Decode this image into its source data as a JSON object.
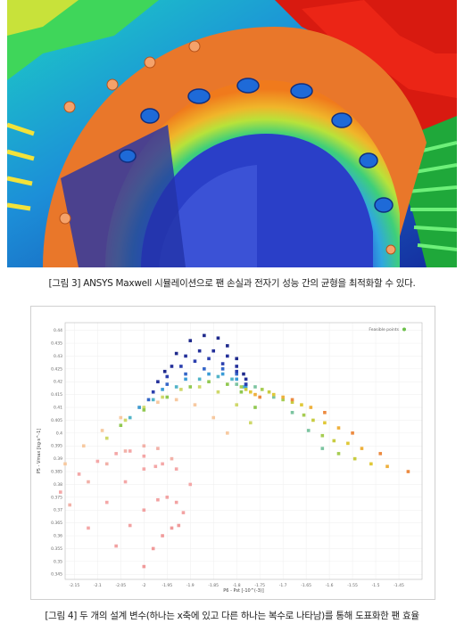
{
  "figure3": {
    "caption": "[그림 3] ANSYS Maxwell 시뮬레이션으로 팬 손실과 전자기 성능 간의 균형을 최적화할 수 있다."
  },
  "figure4": {
    "caption": "[그림 4] 두 개의 설계 변수(하나는 x축에 있고 다른 하나는 복수로 나타남)를 통해 도표화한 팬 효율",
    "chart_data": {
      "type": "scatter",
      "xlabel": "P6 - Pst [-10^(-3)]",
      "ylabel": "P5 - Vmax [kg·s^-1]",
      "legend": [
        "Feasible points"
      ],
      "legend_position": "top-right",
      "grid": true,
      "xlim": [
        -2.17,
        -1.4
      ],
      "ylim": [
        0.343,
        0.443
      ],
      "x_ticks": [
        "-2.15",
        "-2.1",
        "-2.05",
        "-2",
        "-1.95",
        "-1.9",
        "-1.85",
        "-1.8",
        "-1.75",
        "-1.7",
        "-1.65",
        "-1.6",
        "-1.55",
        "-1.5",
        "-1.45"
      ],
      "x_tick_values": [
        -2.15,
        -2.1,
        -2.05,
        -2.0,
        -1.95,
        -1.9,
        -1.85,
        -1.8,
        -1.75,
        -1.7,
        -1.65,
        -1.6,
        -1.55,
        -1.5,
        -1.45
      ],
      "y_ticks": [
        "0.345",
        "0.35",
        "0.355",
        "0.36",
        "0.365",
        "0.37",
        "0.375",
        "0.38",
        "0.385",
        "0.39",
        "0.395",
        "0.4",
        "0.405",
        "0.41",
        "0.415",
        "0.42",
        "0.425",
        "0.43",
        "0.435",
        "0.44"
      ],
      "y_tick_values": [
        0.345,
        0.35,
        0.355,
        0.36,
        0.365,
        0.37,
        0.375,
        0.38,
        0.385,
        0.39,
        0.395,
        0.4,
        0.405,
        0.41,
        0.415,
        0.42,
        0.425,
        0.43,
        0.435,
        0.44
      ],
      "series": [
        {
          "color": "#f4a7a7",
          "x": [
            -2.18,
            -2.14,
            -2.1,
            -2.06,
            -2.03,
            -2.0,
            -1.975
          ],
          "y": [
            0.377,
            0.384,
            0.389,
            0.392,
            0.393,
            0.391,
            0.387
          ]
        },
        {
          "color": "#f2b1a8",
          "x": [
            -2.16,
            -2.12,
            -2.08,
            -2.04,
            -2.0,
            -1.97,
            -1.94
          ],
          "y": [
            0.372,
            0.381,
            0.388,
            0.393,
            0.395,
            0.394,
            0.39
          ]
        },
        {
          "color": "#f4a7a7",
          "x": [
            -2.12,
            -2.08,
            -2.04,
            -2.0,
            -1.96,
            -1.93,
            -1.9
          ],
          "y": [
            0.363,
            0.373,
            0.381,
            0.386,
            0.388,
            0.386,
            0.38
          ]
        },
        {
          "color": "#f2a2a2",
          "x": [
            -2.06,
            -2.03,
            -2.0,
            -1.97,
            -1.95,
            -1.93,
            -1.915
          ],
          "y": [
            0.356,
            0.364,
            0.37,
            0.374,
            0.375,
            0.373,
            0.369
          ]
        },
        {
          "color": "#f09a9a",
          "x": [
            -2.0,
            -1.98,
            -1.96,
            -1.94,
            -1.925
          ],
          "y": [
            0.348,
            0.355,
            0.36,
            0.363,
            0.364
          ]
        },
        {
          "color": "#f7c9a0",
          "x": [
            -2.17,
            -2.13,
            -2.09,
            -2.05,
            -2.01,
            -1.97,
            -1.93,
            -1.89,
            -1.85,
            -1.82
          ],
          "y": [
            0.388,
            0.395,
            0.401,
            0.406,
            0.41,
            0.412,
            0.413,
            0.411,
            0.406,
            0.4
          ]
        },
        {
          "color": "#cfd86a",
          "x": [
            -2.08,
            -2.04,
            -2.0,
            -1.96,
            -1.92,
            -1.88,
            -1.84,
            -1.8,
            -1.77
          ],
          "y": [
            0.398,
            0.405,
            0.41,
            0.414,
            0.417,
            0.418,
            0.416,
            0.411,
            0.404
          ]
        },
        {
          "color": "#90c850",
          "x": [
            -2.05,
            -2.0,
            -1.95,
            -1.9,
            -1.86,
            -1.82,
            -1.79,
            -1.76
          ],
          "y": [
            0.403,
            0.409,
            0.414,
            0.418,
            0.42,
            0.419,
            0.416,
            0.41
          ]
        },
        {
          "color": "#52b4c8",
          "x": [
            -2.03,
            -1.98,
            -1.93,
            -1.88,
            -1.84,
            -1.81,
            -1.785
          ],
          "y": [
            0.406,
            0.413,
            0.418,
            0.421,
            0.422,
            0.421,
            0.418
          ]
        },
        {
          "color": "#3a9bd6",
          "x": [
            -2.01,
            -1.96,
            -1.91,
            -1.86,
            -1.83,
            -1.8,
            -1.78
          ],
          "y": [
            0.41,
            0.417,
            0.421,
            0.423,
            0.423,
            0.421,
            0.418
          ]
        },
        {
          "color": "#3465c8",
          "x": [
            -1.99,
            -1.95,
            -1.91,
            -1.87,
            -1.83,
            -1.8,
            -1.78
          ],
          "y": [
            0.413,
            0.419,
            0.423,
            0.425,
            0.425,
            0.423,
            0.419
          ]
        },
        {
          "color": "#2b3fae",
          "x": [
            -1.98,
            -1.95,
            -1.92,
            -1.89,
            -1.86,
            -1.83,
            -1.8,
            -1.78
          ],
          "y": [
            0.416,
            0.422,
            0.426,
            0.428,
            0.429,
            0.427,
            0.424,
            0.419
          ]
        },
        {
          "color": "#24309a",
          "x": [
            -1.97,
            -1.94,
            -1.91,
            -1.88,
            -1.85,
            -1.82,
            -1.8,
            -1.78
          ],
          "y": [
            0.42,
            0.426,
            0.43,
            0.432,
            0.432,
            0.43,
            0.426,
            0.421
          ]
        },
        {
          "color": "#1f2a8c",
          "x": [
            -1.955,
            -1.93,
            -1.9,
            -1.87,
            -1.84,
            -1.82,
            -1.8,
            -1.785
          ],
          "y": [
            0.424,
            0.431,
            0.436,
            0.438,
            0.437,
            0.434,
            0.429,
            0.423
          ]
        },
        {
          "color": "#7cc4a0",
          "x": [
            -1.8,
            -1.76,
            -1.72,
            -1.68,
            -1.645,
            -1.615
          ],
          "y": [
            0.419,
            0.418,
            0.414,
            0.408,
            0.401,
            0.394
          ]
        },
        {
          "color": "#a6cc52",
          "x": [
            -1.79,
            -1.745,
            -1.7,
            -1.655,
            -1.615,
            -1.58
          ],
          "y": [
            0.418,
            0.417,
            0.413,
            0.407,
            0.399,
            0.392
          ]
        },
        {
          "color": "#c8cc40",
          "x": [
            -1.78,
            -1.73,
            -1.68,
            -1.635,
            -1.59,
            -1.545
          ],
          "y": [
            0.417,
            0.416,
            0.412,
            0.405,
            0.397,
            0.39
          ]
        },
        {
          "color": "#e0c838",
          "x": [
            -1.77,
            -1.72,
            -1.66,
            -1.61,
            -1.56,
            -1.51
          ],
          "y": [
            0.416,
            0.415,
            0.411,
            0.404,
            0.396,
            0.388
          ]
        },
        {
          "color": "#eeb03c",
          "x": [
            -1.76,
            -1.7,
            -1.64,
            -1.58,
            -1.53,
            -1.475
          ],
          "y": [
            0.415,
            0.414,
            0.41,
            0.402,
            0.394,
            0.387
          ]
        },
        {
          "color": "#ec8a40",
          "x": [
            -1.75,
            -1.68,
            -1.61,
            -1.55,
            -1.49,
            -1.43
          ],
          "y": [
            0.414,
            0.413,
            0.408,
            0.4,
            0.392,
            0.385
          ]
        }
      ]
    }
  }
}
